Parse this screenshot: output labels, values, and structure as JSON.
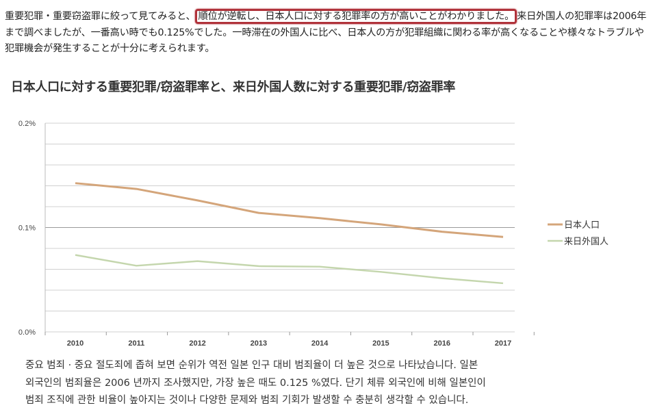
{
  "intro": {
    "before": "重要犯罪・重要窃盗罪に絞って見てみると、",
    "highlight": "順位が逆転し、日本人口に対する犯罪率の方が高いことがわかりました。",
    "after": "来日外国人の犯罪率は2006年まで調べましたが、一番高い時でも0.125%でした。一時滞在の外国人に比べ、日本人の方が犯罪組織に関わる率が高くなることや様々なトラブルや犯罪機会が発生することが十分に考えられます。"
  },
  "chart_data": {
    "type": "line",
    "title": "日本人口に対する重要犯罪/窃盗罪率と、来日外国人数に対する重要犯罪/窃盗罪率",
    "categories": [
      "2010",
      "2011",
      "2012",
      "2013",
      "2014",
      "2015",
      "2016",
      "2017"
    ],
    "y_ticks": [
      "0.2%",
      "0.1%",
      "0.0%"
    ],
    "ylim": [
      0,
      0.2
    ],
    "grid_step": 0.02,
    "legend_position": "right",
    "series": [
      {
        "name": "日本人口",
        "color": "#d4a57a",
        "values": [
          0.1425,
          0.137,
          0.126,
          0.114,
          0.109,
          0.103,
          0.096,
          0.091
        ]
      },
      {
        "name": "来日外国人",
        "color": "#c4d6ad",
        "values": [
          0.0737,
          0.0634,
          0.0678,
          0.063,
          0.0625,
          0.0575,
          0.0514,
          0.0466
        ]
      }
    ]
  },
  "korean": [
    "중요 범죄 · 중요 절도죄에 좁혀 보면 순위가 역전 일본 인구 대비 범죄율이 더 높은 것으로 나타났습니다. 일본",
    "외국인의 범죄율은 2006 년까지 조사했지만, 가장 높은 때도 0.125 %였다. 단기 체류 외국인에 비해 일본인이",
    "범죄 조직에 관한 비율이 높아지는 것이나 다양한 문제와 범죄 기회가 발생할 수 충분히 생각할 수 있습니다."
  ]
}
